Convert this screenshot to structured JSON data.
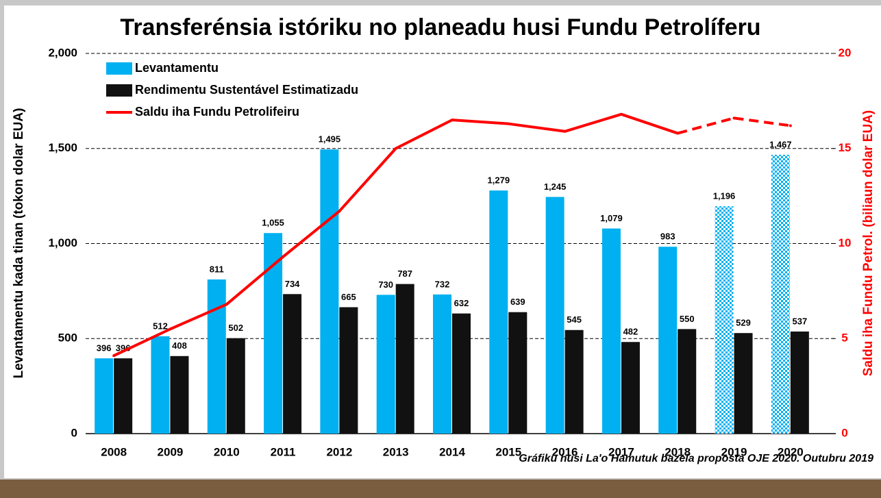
{
  "chart_data": {
    "type": "bar",
    "title": "Transferénsia istóriku no planeadu husi Fundu Petrolíferu",
    "ylabel": "Levantamentu kada tinan (tokon dolar EUA)",
    "y2label": "Saldu iha Fundu Petrol. (biliaun dolar EUA)",
    "footnote": "Gráfiku husi La'o Hamutuk bazeia proposta OJE 2020. Outubru 2019",
    "categories": [
      "2008",
      "2009",
      "2010",
      "2011",
      "2012",
      "2013",
      "2014",
      "2015",
      "2016",
      "2017",
      "2018",
      "2019",
      "2020"
    ],
    "projected": [
      false,
      false,
      false,
      false,
      false,
      false,
      false,
      false,
      false,
      false,
      false,
      true,
      true
    ],
    "series": [
      {
        "name": "Levantamentu",
        "type": "bar",
        "color": "#00b0f0",
        "values": [
          396,
          512,
          811,
          1055,
          1495,
          730,
          732,
          1279,
          1245,
          1079,
          983,
          1196,
          1467
        ],
        "value_labels": [
          "396",
          "512",
          "811",
          "1,055",
          "1,495",
          "730",
          "732",
          "1,279",
          "1,245",
          "1,079",
          "983",
          "1,196",
          "1,467"
        ]
      },
      {
        "name": "Rendimentu Sustentável Estimatizadu",
        "type": "bar",
        "color": "#111111",
        "values": [
          396,
          408,
          502,
          734,
          665,
          787,
          632,
          639,
          545,
          482,
          550,
          529,
          537
        ]
      },
      {
        "name": "Saldu iha Fundu Petrolifeiru",
        "type": "line",
        "color": "#ff0000",
        "axis": "y2",
        "values": [
          4.1,
          5.5,
          6.8,
          9.3,
          11.7,
          15.0,
          16.5,
          16.3,
          15.9,
          16.8,
          15.8,
          16.6,
          16.2
        ]
      }
    ],
    "ylim": [
      0,
      2000
    ],
    "yticks": [
      0,
      500,
      {
        "value": 1000,
        "label": "1,000"
      },
      {
        "value": 1500,
        "label": "1,500"
      },
      {
        "value": 2000,
        "label": "2,000"
      }
    ],
    "y2lim": [
      0,
      20
    ],
    "y2ticks": [
      0,
      5,
      10,
      15,
      20
    ],
    "y2color": "#ff0000",
    "grid": true,
    "legend": "top-left"
  }
}
